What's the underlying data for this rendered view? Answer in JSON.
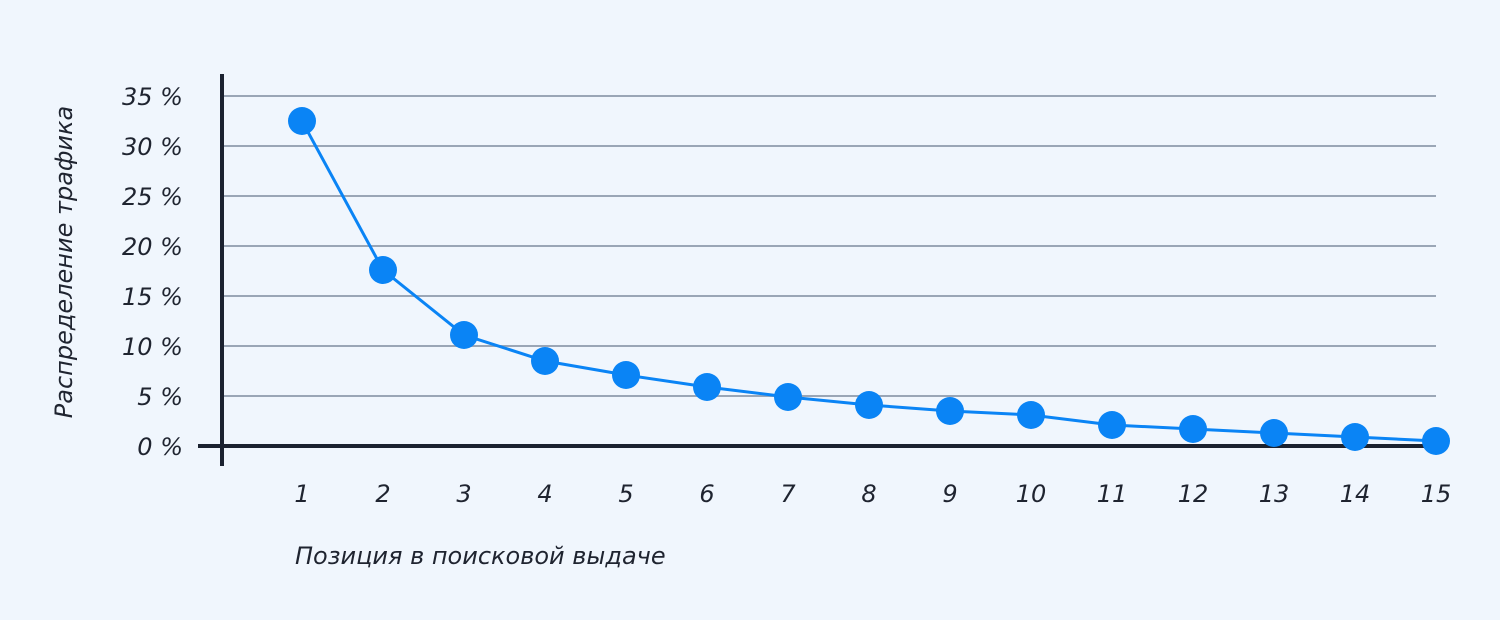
{
  "chart_data": {
    "type": "line",
    "xlabel": "Позиция в поисковой выдаче",
    "ylabel": "Распределение трафика",
    "x": [
      1,
      2,
      3,
      4,
      5,
      6,
      7,
      8,
      9,
      10,
      11,
      12,
      13,
      14,
      15
    ],
    "x_tick_labels": [
      "1",
      "2",
      "3",
      "4",
      "5",
      "6",
      "7",
      "8",
      "9",
      "10",
      "11",
      "12",
      "13",
      "14",
      "15"
    ],
    "y_ticks": [
      0,
      5,
      10,
      15,
      20,
      25,
      30,
      35
    ],
    "y_tick_labels": [
      "0 %",
      "5 %",
      "10 %",
      "15 %",
      "20 %",
      "25 %",
      "30 %",
      "35 %"
    ],
    "ylim": [
      0,
      35
    ],
    "grid": true,
    "legend": "none",
    "series": [
      {
        "values": [
          32.5,
          17.6,
          11.1,
          8.5,
          7.1,
          5.9,
          4.9,
          4.1,
          3.5,
          3.1,
          2.1,
          1.7,
          1.3,
          0.9,
          0.5
        ],
        "color": "#0a84f5"
      }
    ],
    "colors": {
      "background": "#f0f6fd",
      "grid": "#9aa6b6",
      "axis": "#1b2230",
      "text": "#1f2430"
    }
  }
}
